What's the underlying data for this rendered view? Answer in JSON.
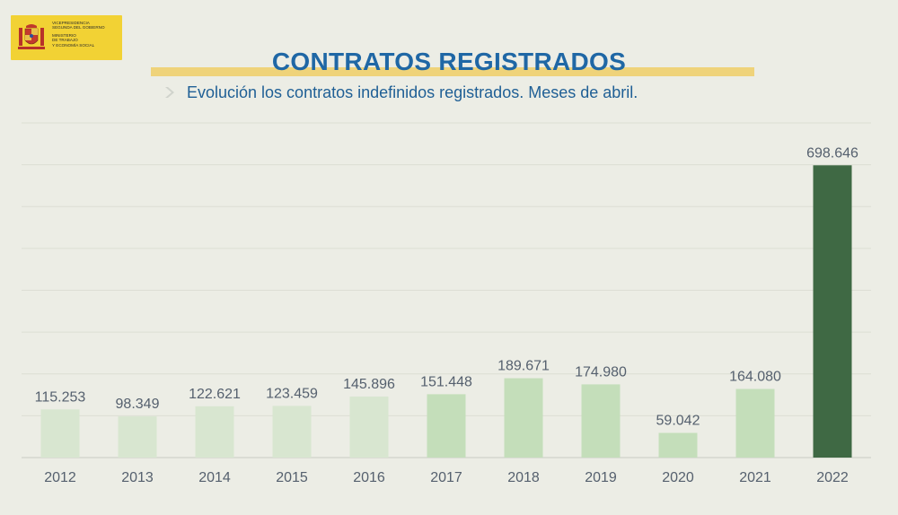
{
  "logo": {
    "lines": [
      "VICEPRESIDENCIA",
      "SEGUNDA DEL GOBIERNO",
      "MINISTERIO",
      "DE TRABAJO",
      "Y ECONOMÍA SOCIAL"
    ]
  },
  "title": "CONTRATOS REGISTRADOS",
  "subtitle": "Evolución los contratos indefinidos registrados. Meses de abril.",
  "colors": {
    "title": "#1f67a5",
    "subtitle": "#1f5f95",
    "title_underline": "#efd37a",
    "logo_background": "#f2d234",
    "label_text": "#55606e",
    "gridline": "#dcded4",
    "bar_2012_2016": "#d8e6d0",
    "bar_2017_2021": "#c4deba",
    "bar_2022": "#3f6944"
  },
  "chart_data": {
    "type": "bar",
    "title": "CONTRATOS REGISTRADOS",
    "subtitle": "Evolución los contratos indefinidos registrados. Meses de abril.",
    "categories": [
      "2012",
      "2013",
      "2014",
      "2015",
      "2016",
      "2017",
      "2018",
      "2019",
      "2020",
      "2021",
      "2022"
    ],
    "values": [
      115253,
      98349,
      122621,
      123459,
      145896,
      151448,
      189671,
      174980,
      59042,
      164080,
      698646
    ],
    "value_labels": [
      "115.253",
      "98.349",
      "122.621",
      "123.459",
      "145.896",
      "151.448",
      "189.671",
      "174.980",
      "59.042",
      "164.080",
      "698.646"
    ],
    "bar_colors": [
      "#d8e6d0",
      "#d8e6d0",
      "#d8e6d0",
      "#d8e6d0",
      "#d8e6d0",
      "#c4deba",
      "#c4deba",
      "#c4deba",
      "#c4deba",
      "#c4deba",
      "#3f6944"
    ],
    "xlabel": "",
    "ylabel": "",
    "ylim": [
      0,
      800000
    ],
    "grid": true,
    "legend": "none"
  }
}
